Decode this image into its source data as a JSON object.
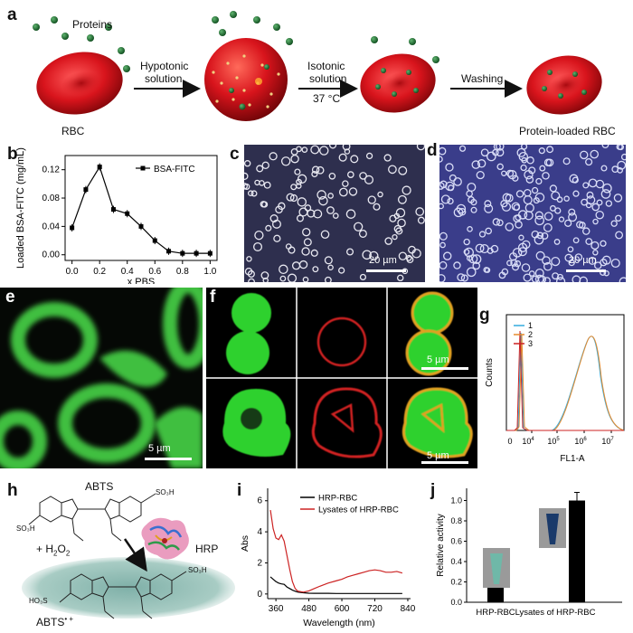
{
  "panel_a": {
    "label": "a",
    "proteins": "Proteins",
    "rbc": "RBC",
    "step1": [
      "Hypotonic",
      "solution"
    ],
    "step2": [
      "Isotonic",
      "solution",
      "37 °C"
    ],
    "step3": "Washing",
    "result": "Protein-loaded RBC",
    "colors": {
      "rbc": "#d8141c",
      "protein": "#1e6b2e"
    }
  },
  "panel_b": {
    "label": "b",
    "chart_data": {
      "type": "line",
      "x": [
        0.0,
        0.1,
        0.2,
        0.3,
        0.4,
        0.5,
        0.6,
        0.7,
        0.8,
        0.9,
        1.0
      ],
      "series": [
        {
          "name": "BSA-FITC",
          "values": [
            0.038,
            0.092,
            0.124,
            0.064,
            0.058,
            0.04,
            0.02,
            0.005,
            0.002,
            0.002,
            0.002
          ]
        }
      ],
      "xlabel": "x PBS",
      "ylabel": "Loaded BSA-FITC (mg/mL)",
      "xticks": [
        "0.0",
        "0.2",
        "0.4",
        "0.6",
        "0.8",
        "1.0"
      ],
      "yticks": [
        "0.00",
        "0.04",
        "0.08",
        "0.12"
      ],
      "xlim": [
        -0.05,
        1.05
      ],
      "ylim": [
        -0.008,
        0.14
      ],
      "legend": "top-right"
    }
  },
  "panel_c": {
    "label": "c",
    "scale": "20 µm"
  },
  "panel_d": {
    "label": "d",
    "scale": "20 µm"
  },
  "panel_e": {
    "label": "e",
    "scale": "5 µm"
  },
  "panel_f": {
    "label": "f",
    "scale_top": "5 µm",
    "scale_bottom": "5 µm"
  },
  "panel_g": {
    "label": "g",
    "chart_data": {
      "type": "line",
      "xlabel": "FL1-A",
      "ylabel": "Counts",
      "xticks": [
        "10",
        "10",
        "10",
        "10"
      ],
      "xtick_exponents": [
        "4",
        "5",
        "6",
        "7"
      ],
      "series": [
        {
          "name": "1",
          "color": "#33aadd"
        },
        {
          "name": "2",
          "color": "#e58a2e"
        },
        {
          "name": "3",
          "color": "#cc2222"
        }
      ],
      "legend": "top-left"
    }
  },
  "panel_h": {
    "label": "h",
    "abts": "ABTS",
    "h2o2": "+ H",
    "h2o2_sub": "2",
    "h2o2_tail": "O",
    "h2o2_sub2": "2",
    "hrp": "HRP",
    "abts_rad": "ABTS",
    "abts_rad_sup": "• +",
    "so3h": "SO₃H",
    "ho3s": "HO₃S"
  },
  "panel_i": {
    "label": "i",
    "chart_data": {
      "type": "line",
      "x": [
        340,
        350,
        360,
        370,
        380,
        390,
        400,
        410,
        420,
        430,
        440,
        460,
        480,
        500,
        520,
        550,
        580,
        600,
        620,
        640,
        660,
        680,
        700,
        720,
        740,
        760,
        780,
        800,
        820
      ],
      "series": [
        {
          "name": "HRP-RBC",
          "color": "#000000",
          "values": [
            1.1,
            0.95,
            0.8,
            0.7,
            0.65,
            0.62,
            0.45,
            0.35,
            0.25,
            0.18,
            0.12,
            0.08,
            0.05,
            0.04,
            0.04,
            0.04,
            0.03,
            0.03,
            0.03,
            0.03,
            0.03,
            0.03,
            0.03,
            0.03,
            0.03,
            0.03,
            0.03,
            0.03,
            0.03
          ]
        },
        {
          "name": "Lysates of HRP-RBC",
          "color": "#cc2222",
          "values": [
            5.4,
            4.2,
            3.6,
            3.5,
            3.8,
            3.4,
            2.5,
            1.6,
            0.8,
            0.35,
            0.18,
            0.12,
            0.2,
            0.35,
            0.5,
            0.7,
            0.85,
            0.95,
            1.1,
            1.2,
            1.3,
            1.4,
            1.5,
            1.55,
            1.5,
            1.4,
            1.4,
            1.45,
            1.35
          ]
        }
      ],
      "xlabel": "Wavelength (nm)",
      "ylabel": "Abs",
      "xticks": [
        "360",
        "480",
        "600",
        "720",
        "840"
      ],
      "yticks": [
        "0",
        "2",
        "4",
        "6"
      ],
      "xlim": [
        330,
        850
      ],
      "ylim": [
        -0.3,
        6.8
      ],
      "legend": "top-right"
    }
  },
  "panel_j": {
    "label": "j",
    "chart_data": {
      "type": "bar",
      "categories": [
        "HRP-RBC",
        "Lysates of HRP-RBC"
      ],
      "values": [
        0.15,
        1.0
      ],
      "errors": [
        0.01,
        0.08
      ],
      "ylabel": "Relative activity",
      "yticks": [
        "0.0",
        "0.2",
        "0.4",
        "0.6",
        "0.8",
        "1.0"
      ],
      "ylim": [
        0,
        1.12
      ]
    }
  }
}
